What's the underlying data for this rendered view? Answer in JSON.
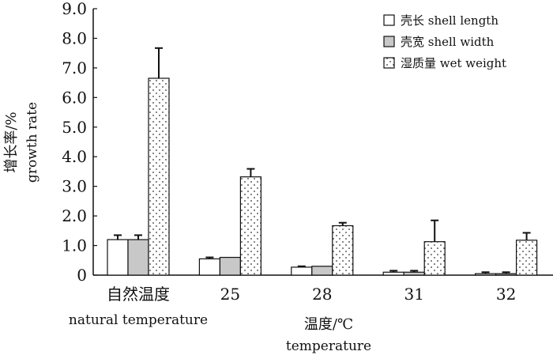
{
  "chart_data": {
    "type": "bar",
    "title": "",
    "categories": [
      "自然温度",
      "25",
      "28",
      "31",
      "32"
    ],
    "category_sublabels": [
      "natural temperature",
      "",
      "",
      "",
      ""
    ],
    "xlabel": "温度/℃",
    "xlabel_en": "temperature",
    "ylabel": "增长率/%",
    "ylabel_en": "growth rate",
    "ylim": [
      0,
      9.0
    ],
    "yticks": [
      "0",
      "1.0",
      "2.0",
      "3.0",
      "4.0",
      "5.0",
      "6.0",
      "7.0",
      "8.0",
      "9.0"
    ],
    "grid": false,
    "legend_position": "top-right",
    "series": [
      {
        "name": "壳长 shell length",
        "fill": "white",
        "values": [
          1.2,
          0.55,
          0.27,
          0.1,
          0.05
        ],
        "errors": [
          0.15,
          0.05,
          0.03,
          0.05,
          0.05
        ]
      },
      {
        "name": "壳宽 shell width",
        "fill": "gray",
        "values": [
          1.2,
          0.6,
          0.3,
          0.1,
          0.05
        ],
        "errors": [
          0.15,
          0.0,
          0.0,
          0.05,
          0.05
        ]
      },
      {
        "name": "湿质量 wet weight",
        "fill": "dotted",
        "values": [
          6.65,
          3.32,
          1.67,
          1.13,
          1.18
        ],
        "errors": [
          1.02,
          0.27,
          0.1,
          0.72,
          0.25
        ]
      }
    ],
    "colors": {
      "gray": "#c8c8c8",
      "outline": "#111111",
      "dots": "#333333"
    }
  }
}
